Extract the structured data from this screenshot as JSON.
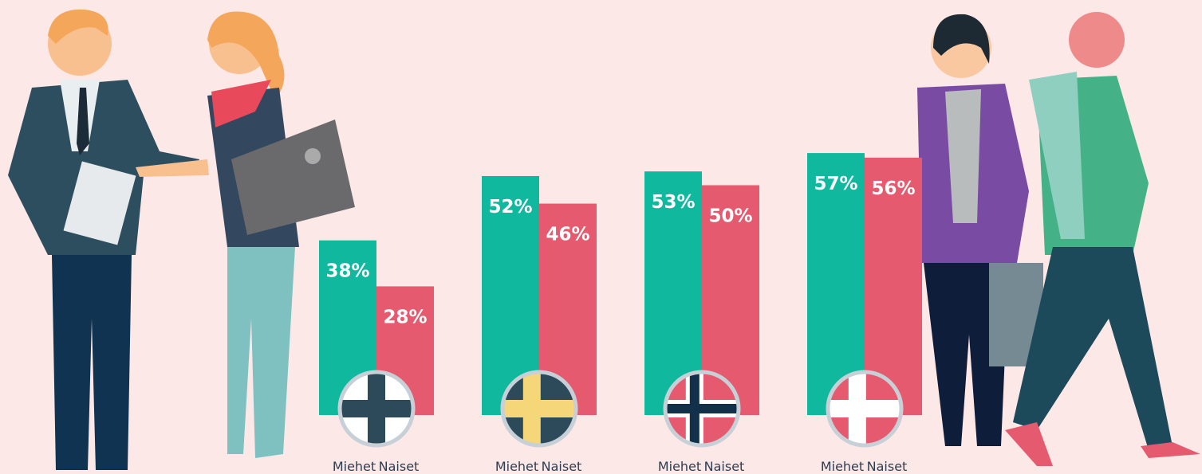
{
  "chart_data": {
    "type": "bar",
    "categories": [
      null,
      null,
      null,
      null
    ],
    "series": [
      {
        "name": "Miehet",
        "color": "#10b99e",
        "values": [
          38,
          52,
          53,
          57
        ],
        "value_labels": [
          "38%",
          "52%",
          "53%",
          "57%"
        ]
      },
      {
        "name": "Naiset",
        "color": "#e55a6e",
        "values": [
          28,
          46,
          50,
          56
        ],
        "value_labels": [
          "28%",
          "46%",
          "50%",
          "56%"
        ]
      }
    ]
  }
}
